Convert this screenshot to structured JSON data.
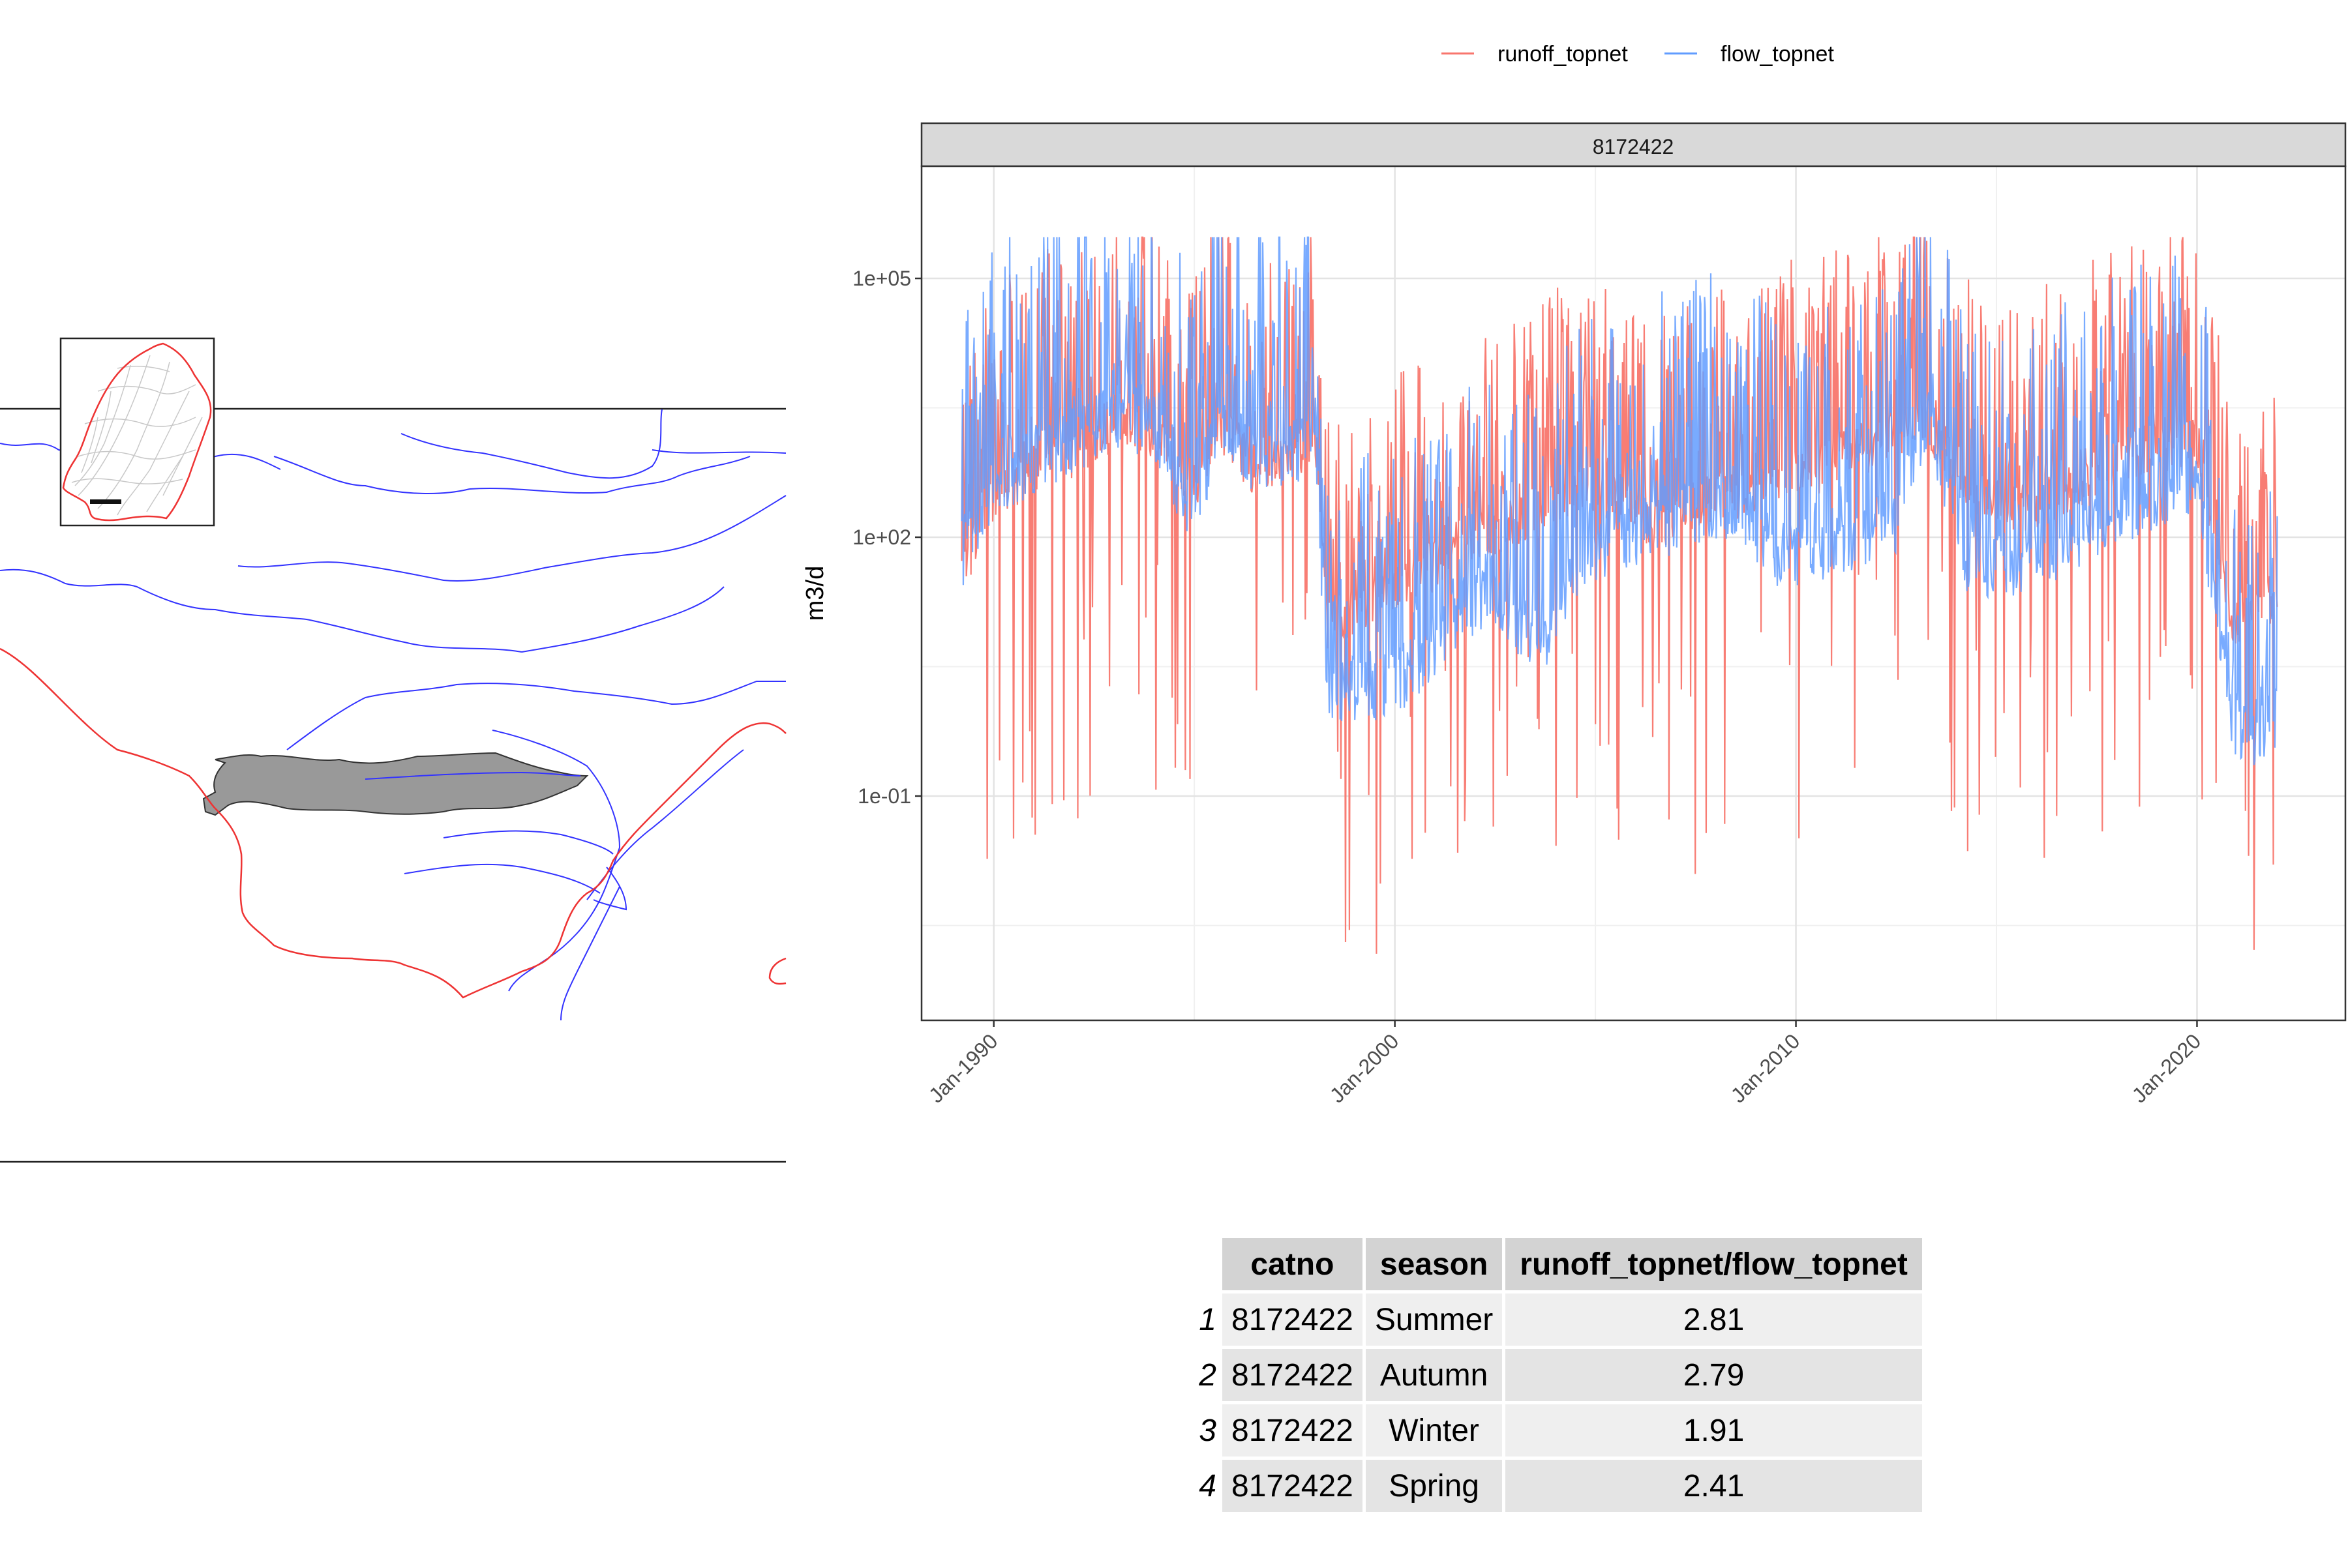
{
  "chart_data": {
    "type": "line",
    "scale_y": "log10",
    "facet_label": "8172422",
    "ylabel": "m3/d",
    "xlabel": "",
    "y_ticks": [
      "1e+05",
      "1e+02",
      "1e-01"
    ],
    "y_tick_values": [
      100000,
      100,
      0.1
    ],
    "x_ticks": [
      "Jan-1990",
      "Jan-2000",
      "Jan-2010",
      "Jan-2020"
    ],
    "x_tick_years": [
      1990,
      2000,
      2010,
      2020
    ],
    "x_range": [
      1988.2,
      2023.7
    ],
    "y_range_log10": [
      -3.6,
      6.3
    ],
    "legend_position": "top",
    "grid": true,
    "series": [
      {
        "name": "runoff_topnet",
        "color": "#F8766D",
        "x": [
          1989.2,
          1990.0,
          1991.0,
          1992.0,
          1993.0,
          1994.0,
          1995.0,
          1995.6,
          1996.5,
          1997.6,
          1998.0,
          1998.3,
          1999.5,
          2000.5,
          2001.5,
          2002.5,
          2003.6,
          2004.5,
          2005.5,
          2006.5,
          2007.5,
          2008.5,
          2009.5,
          2010.5,
          2011.5,
          2012.5,
          2013.3,
          2014.3,
          2015.3,
          2016.5,
          2017.5,
          2018.5,
          2019.5,
          2020.0,
          2020.9,
          2021.3,
          2022.0
        ],
        "y": [
          20,
          150,
          300,
          500,
          1000,
          800,
          200,
          1000,
          300,
          400,
          1000,
          5,
          10,
          15,
          40,
          60,
          100,
          200,
          150,
          70,
          120,
          150,
          250,
          300,
          500,
          700,
          1000,
          200,
          100,
          150,
          300,
          500,
          600,
          700,
          5,
          8,
          10
        ]
      },
      {
        "name": "flow_topnet",
        "color": "#619CFF",
        "x": [
          1989.2,
          1990.0,
          1991.0,
          1992.0,
          1993.0,
          1994.0,
          1995.0,
          1995.6,
          1996.5,
          1997.6,
          1998.0,
          1998.3,
          1999.5,
          2000.5,
          2001.5,
          2002.5,
          2003.6,
          2004.5,
          2005.5,
          2006.5,
          2007.5,
          2008.5,
          2009.5,
          2010.5,
          2011.5,
          2012.5,
          2013.3,
          2014.3,
          2015.3,
          2016.5,
          2017.5,
          2018.5,
          2019.5,
          2020.0,
          2020.9,
          2021.3,
          2022.0
        ],
        "y": [
          25,
          160,
          320,
          520,
          1050,
          820,
          60,
          1050,
          310,
          420,
          1050,
          0.8,
          0.6,
          1.2,
          5,
          10,
          2,
          20,
          40,
          50,
          70,
          100,
          25,
          30,
          40,
          60,
          1050,
          20,
          20,
          30,
          60,
          100,
          150,
          200,
          0.3,
          0.2,
          0.3
        ]
      }
    ],
    "peak_max": 300000
  },
  "table": {
    "columns": [
      "catno",
      "season",
      "runoff_topnet/flow_topnet"
    ],
    "rows": [
      {
        "index": "1",
        "catno": "8172422",
        "season": "Summer",
        "ratio": "2.81"
      },
      {
        "index": "2",
        "catno": "8172422",
        "season": "Autumn",
        "ratio": "2.79"
      },
      {
        "index": "3",
        "catno": "8172422",
        "season": "Winter",
        "ratio": "1.91"
      },
      {
        "index": "4",
        "catno": "8172422",
        "season": "Spring",
        "ratio": "2.41"
      }
    ]
  },
  "map": {
    "colors": {
      "rivers": "#3333ff",
      "boundary": "#ee3333",
      "catchment": "#999999"
    }
  }
}
